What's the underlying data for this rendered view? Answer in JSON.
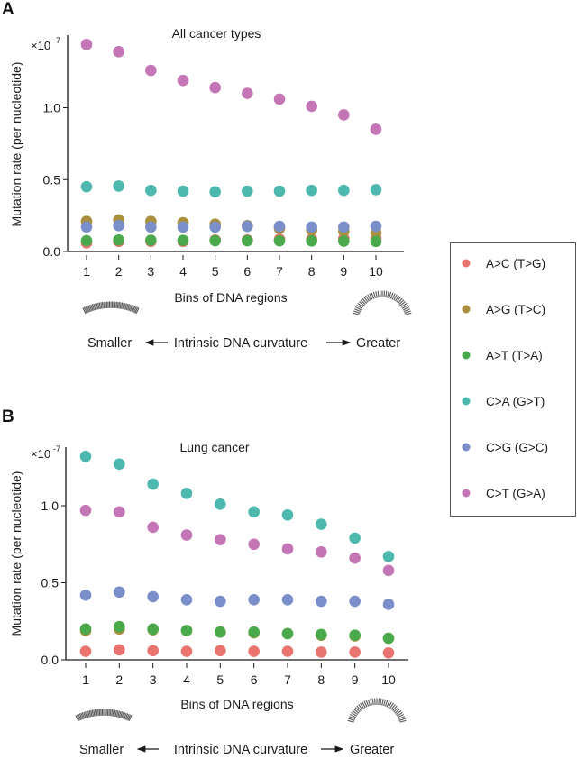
{
  "legend": {
    "items": [
      {
        "name": "A>C (T>G)",
        "color": "#e8736f"
      },
      {
        "name": "A>G (T>C)",
        "color": "#a8903f"
      },
      {
        "name": "A>T (T>A)",
        "color": "#4aa94b"
      },
      {
        "name": "C>A (G>T)",
        "color": "#4db8ad"
      },
      {
        "name": "C>G (G>C)",
        "color": "#7a8ec9"
      },
      {
        "name": "C>T (G>A)",
        "color": "#c475b5"
      }
    ]
  },
  "chart_data": [
    {
      "panel_label": "A",
      "type": "scatter",
      "title": "All cancer types",
      "xlabel": "Bins of DNA regions",
      "ylabel": "Mutation rate (per nucleotide)",
      "y_multiplier": "×10",
      "y_exponent": "-7",
      "ylim": [
        0,
        1.5
      ],
      "yticks": [
        "0.0",
        "0.5",
        "1.0"
      ],
      "ytick_values": [
        0,
        0.5,
        1.0
      ],
      "x": [
        1,
        2,
        3,
        4,
        5,
        6,
        7,
        8,
        9,
        10
      ],
      "xticks": [
        "1",
        "2",
        "3",
        "4",
        "5",
        "6",
        "7",
        "8",
        "9",
        "10"
      ],
      "legend_position": "right",
      "series": [
        {
          "name": "A>C (T>G)",
          "values": [
            0.06,
            0.07,
            0.07,
            0.07,
            0.08,
            0.08,
            0.085,
            0.085,
            0.09,
            0.09
          ]
        },
        {
          "name": "A>G (T>C)",
          "values": [
            0.21,
            0.22,
            0.21,
            0.2,
            0.19,
            0.18,
            0.16,
            0.15,
            0.14,
            0.13
          ]
        },
        {
          "name": "A>T (T>A)",
          "values": [
            0.075,
            0.08,
            0.078,
            0.077,
            0.075,
            0.075,
            0.074,
            0.073,
            0.072,
            0.07
          ]
        },
        {
          "name": "C>A (G>T)",
          "values": [
            0.45,
            0.455,
            0.425,
            0.42,
            0.415,
            0.42,
            0.42,
            0.425,
            0.425,
            0.43
          ]
        },
        {
          "name": "C>G (G>C)",
          "values": [
            0.17,
            0.18,
            0.17,
            0.17,
            0.17,
            0.175,
            0.175,
            0.17,
            0.17,
            0.175
          ]
        },
        {
          "name": "C>T (G>A)",
          "values": [
            1.44,
            1.39,
            1.26,
            1.19,
            1.14,
            1.1,
            1.06,
            1.01,
            0.95,
            0.85
          ]
        }
      ],
      "curvature": {
        "smaller": "Smaller",
        "middle": "Intrinsic DNA curvature",
        "greater": "Greater"
      }
    },
    {
      "panel_label": "B",
      "type": "scatter",
      "title": "Lung cancer",
      "xlabel": "Bins of DNA regions",
      "ylabel": "Mutation rate (per nucleotide)",
      "y_multiplier": "×10",
      "y_exponent": "-7",
      "ylim": [
        0,
        1.38
      ],
      "yticks": [
        "0.0",
        "0.5",
        "1.0"
      ],
      "ytick_values": [
        0,
        0.5,
        1.0
      ],
      "x": [
        1,
        2,
        3,
        4,
        5,
        6,
        7,
        8,
        9,
        10
      ],
      "xticks": [
        "1",
        "2",
        "3",
        "4",
        "5",
        "6",
        "7",
        "8",
        "9",
        "10"
      ],
      "legend_position": "right",
      "series": [
        {
          "name": "A>C (T>G)",
          "values": [
            0.055,
            0.065,
            0.06,
            0.055,
            0.06,
            0.055,
            0.055,
            0.05,
            0.05,
            0.045
          ]
        },
        {
          "name": "A>G (T>C)",
          "values": [
            0.19,
            0.2,
            0.195,
            0.19,
            0.18,
            0.175,
            0.17,
            0.16,
            0.155,
            0.14
          ]
        },
        {
          "name": "A>T (T>A)",
          "values": [
            0.2,
            0.215,
            0.2,
            0.19,
            0.18,
            0.18,
            0.17,
            0.165,
            0.16,
            0.14
          ]
        },
        {
          "name": "C>A (G>T)",
          "values": [
            1.32,
            1.27,
            1.14,
            1.08,
            1.01,
            0.96,
            0.94,
            0.88,
            0.79,
            0.67
          ]
        },
        {
          "name": "C>G (G>C)",
          "values": [
            0.42,
            0.44,
            0.41,
            0.39,
            0.38,
            0.39,
            0.39,
            0.38,
            0.38,
            0.36
          ]
        },
        {
          "name": "C>T (G>A)",
          "values": [
            0.97,
            0.96,
            0.86,
            0.81,
            0.78,
            0.75,
            0.72,
            0.7,
            0.66,
            0.58
          ]
        }
      ],
      "curvature": {
        "smaller": "Smaller",
        "middle": "Intrinsic DNA curvature",
        "greater": "Greater"
      }
    }
  ]
}
